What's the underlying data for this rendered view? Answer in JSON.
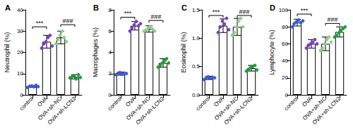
{
  "chart_data": [
    {
      "type": "bar",
      "title": "A",
      "ylabel": "Neutrophil (%)",
      "categories": [
        "control",
        "OVA",
        "OVA+sh-NC",
        "OVA+sh-LCN2"
      ],
      "values": [
        4,
        25,
        27,
        8.5
      ],
      "errors": [
        0.5,
        3,
        3,
        1
      ],
      "points": [
        [
          3.5,
          4,
          4.2,
          3.8,
          4.5,
          3.9
        ],
        [
          22,
          24,
          25,
          27,
          28,
          23
        ],
        [
          24,
          26,
          28,
          30,
          27,
          25
        ],
        [
          8,
          8.5,
          9,
          7.5,
          9.5,
          8.2
        ]
      ],
      "colors": [
        "#3b5bdb",
        "#7b3fbf",
        "#8fd18b",
        "#1f9e3a"
      ],
      "ylim": [
        0,
        40
      ],
      "yticks": [
        0,
        10,
        20,
        30,
        40
      ],
      "grid": false,
      "significance": [
        {
          "from": 0,
          "to": 1,
          "y": 32,
          "text": "***"
        },
        {
          "from": 2,
          "to": 3,
          "y": 33,
          "text": "###"
        }
      ]
    },
    {
      "type": "bar",
      "title": "B",
      "ylabel": "Macrophages (%)",
      "categories": [
        "control",
        "OVA",
        "OVA+sh-NC",
        "OVA+sh-LCN2"
      ],
      "values": [
        2.0,
        6.5,
        6.2,
        3.0
      ],
      "errors": [
        0.15,
        0.4,
        0.3,
        0.4
      ],
      "points": [
        [
          1.9,
          2.0,
          2.1,
          1.95,
          2.05,
          2.0
        ],
        [
          6.0,
          6.3,
          6.6,
          6.9,
          6.5,
          6.7
        ],
        [
          6.0,
          6.1,
          6.3,
          6.4,
          6.2,
          6.0
        ],
        [
          2.6,
          2.8,
          3.0,
          3.2,
          3.4,
          3.0
        ]
      ],
      "colors": [
        "#3b5bdb",
        "#7b3fbf",
        "#8fd18b",
        "#1f9e3a"
      ],
      "ylim": [
        0,
        8
      ],
      "yticks": [
        0,
        2,
        4,
        6,
        8
      ],
      "grid": false,
      "significance": [
        {
          "from": 0,
          "to": 1,
          "y": 7.3,
          "text": "***"
        },
        {
          "from": 2,
          "to": 3,
          "y": 7.0,
          "text": "###"
        }
      ]
    },
    {
      "type": "bar",
      "title": "C",
      "ylabel": "Eosinophil (%)",
      "categories": [
        "control",
        "OVA",
        "OVA+sh-NC",
        "OVA+sh-LCN2"
      ],
      "values": [
        0.3,
        1.22,
        1.2,
        0.47
      ],
      "errors": [
        0.03,
        0.12,
        0.15,
        0.05
      ],
      "points": [
        [
          0.27,
          0.3,
          0.32,
          0.29,
          0.31,
          0.3
        ],
        [
          1.1,
          1.2,
          1.3,
          1.25,
          1.35,
          1.15
        ],
        [
          1.05,
          1.1,
          1.2,
          1.3,
          1.35,
          1.2
        ],
        [
          0.42,
          0.45,
          0.48,
          0.5,
          0.52,
          0.44
        ]
      ],
      "colors": [
        "#3b5bdb",
        "#7b3fbf",
        "#8fd18b",
        "#1f9e3a"
      ],
      "ylim": [
        0,
        1.5
      ],
      "yticks": [
        {
          "value": 0,
          "label": "0.0"
        },
        0.5,
        {
          "value": 1,
          "label": "1.0"
        },
        1.5
      ],
      "grid": false,
      "significance": [
        {
          "from": 0,
          "to": 1,
          "y": 1.4,
          "text": "***"
        },
        {
          "from": 2,
          "to": 3,
          "y": 1.4,
          "text": "###"
        }
      ]
    },
    {
      "type": "bar",
      "title": "D",
      "ylabel": "Lymphocyte (%)",
      "categories": [
        "control",
        "OVA",
        "OVA+sh-NC",
        "OVA+sh-LCN2"
      ],
      "values": [
        85,
        60,
        60,
        74
      ],
      "errors": [
        4,
        5,
        8,
        6
      ],
      "points": [
        [
          80,
          84,
          86,
          88,
          85,
          87
        ],
        [
          55,
          58,
          60,
          62,
          65,
          60
        ],
        [
          52,
          55,
          60,
          65,
          68,
          62
        ],
        [
          68,
          70,
          73,
          76,
          78,
          80
        ]
      ],
      "colors": [
        "#3b5bdb",
        "#7b3fbf",
        "#8fd18b",
        "#1f9e3a"
      ],
      "ylim": [
        0,
        100
      ],
      "yticks": [
        0,
        20,
        40,
        60,
        80,
        100
      ],
      "grid": false,
      "significance": [
        {
          "from": 0,
          "to": 1,
          "y": 95,
          "text": "***"
        },
        {
          "from": 2,
          "to": 3,
          "y": 84,
          "text": "###"
        }
      ]
    }
  ]
}
